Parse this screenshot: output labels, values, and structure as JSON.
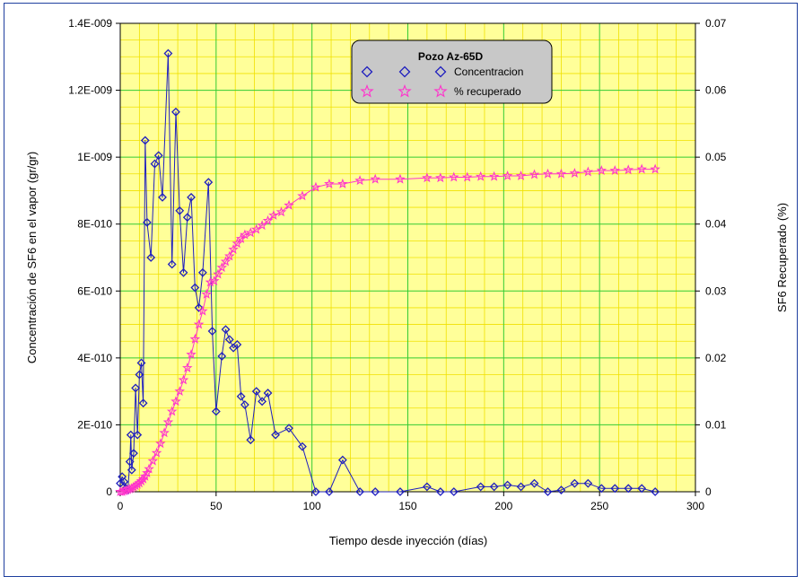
{
  "chart_data": {
    "type": "line",
    "title": "",
    "xlabel": "Tiempo desde inyección (días)",
    "ylabel_left": "Concentración de SF6 en el vapor (gr/gr)",
    "ylabel_right": "SF6 Recuperado (%)",
    "xlim": [
      0,
      300
    ],
    "ylim_left": [
      0,
      1.4e-09
    ],
    "ylim_right": [
      0,
      0.07
    ],
    "x_ticks": [
      "0",
      "50",
      "100",
      "150",
      "200",
      "250",
      "300"
    ],
    "y_left_ticks": [
      "0",
      "2E-010",
      "4E-010",
      "6E-010",
      "8E-010",
      "1E-009",
      "1.2E-009",
      "1.4E-009"
    ],
    "y_right_ticks": [
      "0",
      "0.01",
      "0.02",
      "0.03",
      "0.04",
      "0.05",
      "0.06",
      "0.07"
    ],
    "grid": true,
    "colors": {
      "plot_background": "#ffff99",
      "minor_grid": "#f0e000",
      "major_grid": "#33cc33",
      "concentration": "#1f1fbf",
      "recovered": "#ff33cc",
      "legend_bg": "#c8c8c8"
    },
    "legend": {
      "title": "Pozo Az-65D",
      "placement": "top-center",
      "entries": [
        "Concentracion",
        "% recuperado"
      ]
    },
    "series": [
      {
        "name": "Concentracion",
        "axis": "left",
        "marker": "diamond",
        "x": [
          0,
          1,
          2,
          3,
          4,
          5,
          5.5,
          6,
          7,
          8,
          9,
          10,
          11,
          12,
          13,
          14,
          16,
          18,
          20,
          22,
          25,
          27,
          29,
          31,
          33,
          35,
          37,
          39,
          41,
          43,
          46,
          48,
          50,
          53,
          55,
          57,
          59,
          61,
          63,
          65,
          68,
          71,
          74,
          77,
          81,
          88,
          95,
          102,
          109,
          116,
          125,
          133,
          146,
          160,
          167,
          174,
          188,
          195,
          202,
          209,
          216,
          223,
          230,
          237,
          244,
          251,
          258,
          265,
          272,
          279
        ],
        "y": [
          2.5e-11,
          4.5e-11,
          3e-11,
          1e-11,
          5e-12,
          9e-11,
          1.7e-10,
          6.5e-11,
          1.15e-10,
          3.1e-10,
          1.7e-10,
          3.5e-10,
          3.85e-10,
          2.65e-10,
          1.05e-09,
          8.05e-10,
          7e-10,
          9.8e-10,
          1.005e-09,
          8.8e-10,
          1.31e-09,
          6.8e-10,
          1.135e-09,
          8.4e-10,
          6.55e-10,
          8.2e-10,
          8.8e-10,
          6.1e-10,
          5.5e-10,
          6.55e-10,
          9.25e-10,
          4.8e-10,
          2.4e-10,
          4.05e-10,
          4.85e-10,
          4.55e-10,
          4.3e-10,
          4.4e-10,
          2.85e-10,
          2.6e-10,
          1.55e-10,
          3e-10,
          2.7e-10,
          2.95e-10,
          1.7e-10,
          1.9e-10,
          1.35e-10,
          0,
          0,
          9.5e-11,
          0,
          0,
          0,
          1.5e-11,
          0,
          0,
          1.5e-11,
          1.5e-11,
          2e-11,
          1.5e-11,
          2.5e-11,
          0,
          5e-12,
          2.5e-11,
          2.5e-11,
          1e-11,
          1e-11,
          1e-11,
          1e-11,
          0
        ]
      },
      {
        "name": "% recuperado",
        "axis": "right",
        "marker": "star",
        "x": [
          0,
          1,
          2,
          3,
          4,
          5,
          6,
          7,
          8,
          9,
          10,
          11,
          12,
          13,
          14,
          15,
          17,
          19,
          21,
          23,
          25,
          27,
          29,
          31,
          33,
          35,
          37,
          39,
          41,
          43,
          45,
          47,
          49,
          51,
          53,
          55,
          57,
          59,
          61,
          63,
          65,
          68,
          71,
          74,
          77,
          80,
          84,
          88,
          95,
          102,
          109,
          116,
          125,
          133,
          146,
          160,
          167,
          174,
          181,
          188,
          195,
          202,
          209,
          216,
          223,
          230,
          237,
          244,
          251,
          258,
          265,
          272,
          279
        ],
        "y": [
          0,
          0,
          0.0001,
          0.0002,
          0.0003,
          0.0004,
          0.0005,
          0.0007,
          0.0009,
          0.0011,
          0.0013,
          0.0016,
          0.0019,
          0.0023,
          0.0028,
          0.0034,
          0.0046,
          0.0058,
          0.0072,
          0.0088,
          0.0104,
          0.012,
          0.0135,
          0.015,
          0.0167,
          0.0185,
          0.0205,
          0.0228,
          0.025,
          0.027,
          0.0295,
          0.0313,
          0.0315,
          0.0325,
          0.0335,
          0.0344,
          0.0352,
          0.0362,
          0.0371,
          0.0378,
          0.0384,
          0.0387,
          0.0392,
          0.0398,
          0.0405,
          0.0413,
          0.0418,
          0.0428,
          0.0442,
          0.0455,
          0.046,
          0.046,
          0.0465,
          0.0467,
          0.0467,
          0.0469,
          0.0469,
          0.047,
          0.047,
          0.0471,
          0.0471,
          0.0472,
          0.0472,
          0.0474,
          0.0475,
          0.0475,
          0.0476,
          0.0478,
          0.048,
          0.048,
          0.0481,
          0.0482,
          0.0482
        ]
      }
    ]
  }
}
